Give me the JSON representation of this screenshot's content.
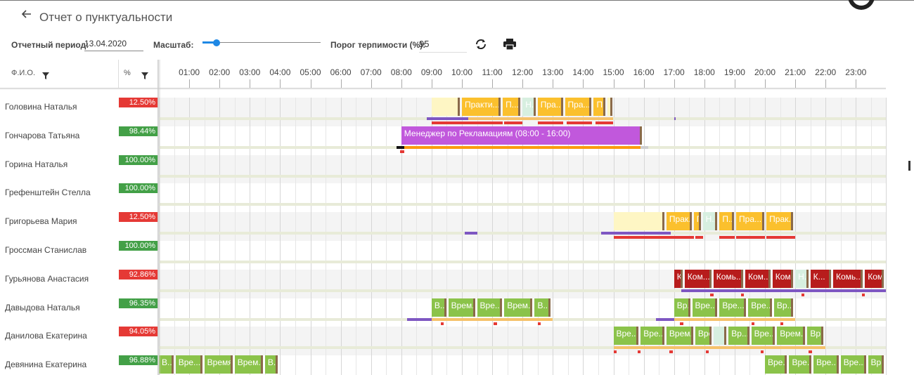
{
  "header": {
    "title": "Отчет о пунктуальности",
    "period_label": "Отчетный период:",
    "period_value": "13.04.2020",
    "scale_label": "Масштаб:",
    "scale_value": 0.12,
    "tolerance_label": "Порог терпимости (%):",
    "tolerance_value": "95"
  },
  "columns": {
    "name": "Ф.И.О.",
    "percent": "%"
  },
  "timeline": {
    "hours": [
      "01:00",
      "02:00",
      "03:00",
      "04:00",
      "05:00",
      "06:00",
      "07:00",
      "08:00",
      "09:00",
      "10:00",
      "11:00",
      "12:00",
      "13:00",
      "14:00",
      "15:00",
      "16:00",
      "17:00",
      "18:00",
      "19:00",
      "20:00",
      "21:00",
      "22:00",
      "23:00"
    ]
  },
  "colors": {
    "bad": "#e53935",
    "good": "#43a047"
  },
  "rows": [
    {
      "name": "Головина Наталья",
      "percent": "12.50%",
      "status": "bad",
      "segments": [
        {
          "start": 9.0,
          "end": 10.0,
          "label": "",
          "color": "#fef6c4"
        },
        {
          "start": 10.0,
          "end": 11.35,
          "label": "Практи...",
          "color": "#fbc02d"
        },
        {
          "start": 11.35,
          "end": 12.0,
          "label": "П...",
          "color": "#fbc02d"
        },
        {
          "start": 12.0,
          "end": 12.5,
          "label": "Н...",
          "color": "#d7efe0"
        },
        {
          "start": 12.5,
          "end": 13.4,
          "label": "Пра...",
          "color": "#fbc02d"
        },
        {
          "start": 13.4,
          "end": 14.35,
          "label": "Пра...",
          "color": "#fbc02d"
        },
        {
          "start": 14.35,
          "end": 14.8,
          "label": "П...",
          "color": "#fbc02d"
        },
        {
          "start": 14.8,
          "end": 15.0,
          "label": "",
          "color": "#fef6c4"
        }
      ],
      "marks": [
        {
          "start": 8.85,
          "end": 10.2,
          "color": "#7e57c2"
        },
        {
          "start": 10.2,
          "end": 15.0,
          "color": "#f5c26b"
        },
        {
          "start": 17.0,
          "end": 17.05,
          "color": "#7e57c2"
        }
      ],
      "marks2": [
        {
          "start": 9.0,
          "end": 11.35,
          "color": "#e53935"
        },
        {
          "start": 11.4,
          "end": 12.0,
          "color": "#e53935"
        },
        {
          "start": 12.5,
          "end": 13.35,
          "color": "#e53935"
        },
        {
          "start": 13.45,
          "end": 14.3,
          "color": "#e53935"
        },
        {
          "start": 14.4,
          "end": 15.0,
          "color": "#e53935"
        }
      ]
    },
    {
      "name": "Гончарова Татьяна",
      "percent": "98.44%",
      "status": "good",
      "segments": [
        {
          "start": 8.0,
          "end": 16.0,
          "label": "Менеджер по Рекламациям (08:00 - 16:00)",
          "color": "#c158dc"
        }
      ],
      "marks": [
        {
          "start": 7.85,
          "end": 8.1,
          "color": "#111111"
        },
        {
          "start": 8.1,
          "end": 15.9,
          "color": "#fb9a0f"
        },
        {
          "start": 15.9,
          "end": 16.15,
          "color": "#cfcfcf"
        }
      ],
      "marks2": [
        {
          "start": 7.95,
          "end": 8.1,
          "color": "#e53935"
        }
      ]
    },
    {
      "name": "Горина Наталья",
      "percent": "100.00%",
      "status": "good",
      "segments": [],
      "marks": [],
      "marks2": []
    },
    {
      "name": "Грефенштейн Стелла",
      "percent": "100.00%",
      "status": "good",
      "segments": [],
      "marks": [],
      "marks2": []
    },
    {
      "name": "Григорьева Мария",
      "percent": "12.50%",
      "status": "bad",
      "segments": [
        {
          "start": 15.0,
          "end": 16.75,
          "label": "",
          "color": "#fef6c4"
        },
        {
          "start": 16.75,
          "end": 17.65,
          "label": "Прак...",
          "color": "#fbc02d"
        },
        {
          "start": 17.65,
          "end": 17.95,
          "label": "Г...",
          "color": "#fbc02d"
        },
        {
          "start": 17.95,
          "end": 18.5,
          "label": "Н...",
          "color": "#d7efe0"
        },
        {
          "start": 18.5,
          "end": 19.05,
          "label": "П...",
          "color": "#fbc02d"
        },
        {
          "start": 19.05,
          "end": 20.05,
          "label": "Пра...",
          "color": "#fbc02d"
        },
        {
          "start": 20.05,
          "end": 21.0,
          "label": "Прак...",
          "color": "#fbc02d"
        }
      ],
      "marks": [
        {
          "start": 10.1,
          "end": 10.5,
          "color": "#7e57c2"
        },
        {
          "start": 14.6,
          "end": 16.9,
          "color": "#7e57c2"
        }
      ],
      "marks2": [
        {
          "start": 15.0,
          "end": 17.65,
          "color": "#e53935"
        },
        {
          "start": 17.7,
          "end": 17.95,
          "color": "#e53935"
        },
        {
          "start": 18.5,
          "end": 19.0,
          "color": "#e53935"
        },
        {
          "start": 19.05,
          "end": 20.0,
          "color": "#e53935"
        },
        {
          "start": 20.05,
          "end": 21.0,
          "color": "#e53935"
        }
      ]
    },
    {
      "name": "Гроссман Станислав",
      "percent": "100.00%",
      "status": "good",
      "segments": [],
      "marks": [],
      "marks2": []
    },
    {
      "name": "Гурьянова Анастасия",
      "percent": "92.86%",
      "status": "bad",
      "segments": [
        {
          "start": 17.0,
          "end": 17.35,
          "label": "К...",
          "color": "#b71c1c"
        },
        {
          "start": 17.35,
          "end": 18.3,
          "label": "Ком...",
          "color": "#b71c1c"
        },
        {
          "start": 18.3,
          "end": 19.35,
          "label": "Комь...",
          "color": "#b71c1c"
        },
        {
          "start": 19.35,
          "end": 20.25,
          "label": "Ком...",
          "color": "#b71c1c"
        },
        {
          "start": 20.25,
          "end": 21.0,
          "label": "Ком...",
          "color": "#b71c1c"
        },
        {
          "start": 21.0,
          "end": 21.5,
          "label": "Н...",
          "color": "#d7efe0"
        },
        {
          "start": 21.5,
          "end": 22.25,
          "label": "К...",
          "color": "#b71c1c"
        },
        {
          "start": 22.25,
          "end": 23.3,
          "label": "Комь...",
          "color": "#b71c1c"
        },
        {
          "start": 23.3,
          "end": 24.0,
          "label": "Ком...",
          "color": "#b71c1c"
        }
      ],
      "marks": [
        {
          "start": 17.25,
          "end": 24.0,
          "color": "#7e57c2"
        }
      ],
      "marks2": [
        {
          "start": 18.2,
          "end": 18.3,
          "color": "#e53935"
        },
        {
          "start": 19.2,
          "end": 19.3,
          "color": "#e53935"
        },
        {
          "start": 21.2,
          "end": 21.3,
          "color": "#e53935"
        },
        {
          "start": 23.2,
          "end": 23.3,
          "color": "#e53935"
        }
      ]
    },
    {
      "name": "Давыдова Наталья",
      "percent": "96.35%",
      "status": "good",
      "segments": [
        {
          "start": 9.0,
          "end": 9.55,
          "label": "В...",
          "color": "#8bc34a"
        },
        {
          "start": 9.55,
          "end": 10.5,
          "label": "Врем...",
          "color": "#8bc34a"
        },
        {
          "start": 10.5,
          "end": 11.4,
          "label": "Вре...",
          "color": "#8bc34a"
        },
        {
          "start": 11.4,
          "end": 12.4,
          "label": "Врем...",
          "color": "#8bc34a"
        },
        {
          "start": 12.4,
          "end": 13.0,
          "label": "В...",
          "color": "#8bc34a"
        },
        {
          "start": 17.0,
          "end": 17.6,
          "label": "Вр...",
          "color": "#8bc34a"
        },
        {
          "start": 17.6,
          "end": 18.5,
          "label": "Вре...",
          "color": "#8bc34a"
        },
        {
          "start": 18.5,
          "end": 19.45,
          "label": "Вре...",
          "color": "#8bc34a"
        },
        {
          "start": 19.45,
          "end": 20.3,
          "label": "Вре...",
          "color": "#8bc34a"
        },
        {
          "start": 20.3,
          "end": 21.0,
          "label": "Вр...",
          "color": "#8bc34a"
        }
      ],
      "marks": [
        {
          "start": 8.2,
          "end": 9.0,
          "color": "#7e57c2"
        },
        {
          "start": 9.0,
          "end": 13.0,
          "color": "#f5c26b"
        },
        {
          "start": 16.4,
          "end": 17.0,
          "color": "#7e57c2"
        },
        {
          "start": 17.0,
          "end": 21.0,
          "color": "#f5c26b"
        }
      ],
      "marks2": [
        {
          "start": 9.3,
          "end": 9.4,
          "color": "#e53935"
        },
        {
          "start": 11.05,
          "end": 11.15,
          "color": "#e53935"
        },
        {
          "start": 12.5,
          "end": 12.6,
          "color": "#e53935"
        },
        {
          "start": 17.2,
          "end": 17.3,
          "color": "#e53935"
        },
        {
          "start": 19.55,
          "end": 19.65,
          "color": "#e53935"
        },
        {
          "start": 20.5,
          "end": 20.6,
          "color": "#e53935"
        }
      ]
    },
    {
      "name": "Данилова Екатерина",
      "percent": "94.05%",
      "status": "bad",
      "segments": [
        {
          "start": 15.0,
          "end": 15.9,
          "label": "Вре...",
          "color": "#8bc34a"
        },
        {
          "start": 15.9,
          "end": 16.75,
          "label": "Вре...",
          "color": "#8bc34a"
        },
        {
          "start": 16.75,
          "end": 17.7,
          "label": "Врем...",
          "color": "#8bc34a"
        },
        {
          "start": 17.7,
          "end": 18.3,
          "label": "Вре...",
          "color": "#8bc34a"
        },
        {
          "start": 18.3,
          "end": 18.8,
          "label": "",
          "color": "#d7efe0"
        },
        {
          "start": 18.8,
          "end": 19.55,
          "label": "Вр...",
          "color": "#8bc34a"
        },
        {
          "start": 19.55,
          "end": 20.4,
          "label": "Вре...",
          "color": "#8bc34a"
        },
        {
          "start": 20.4,
          "end": 21.4,
          "label": "Врем...",
          "color": "#8bc34a"
        },
        {
          "start": 21.4,
          "end": 22.0,
          "label": "Вр...",
          "color": "#8bc34a"
        }
      ],
      "marks": [
        {
          "start": 15.0,
          "end": 22.0,
          "color": "#f5c26b"
        }
      ],
      "marks2": [
        {
          "start": 15.0,
          "end": 15.1,
          "color": "#e53935"
        },
        {
          "start": 15.8,
          "end": 15.9,
          "color": "#e53935"
        },
        {
          "start": 16.85,
          "end": 16.95,
          "color": "#e53935"
        },
        {
          "start": 18.05,
          "end": 18.15,
          "color": "#e53935"
        },
        {
          "start": 19.85,
          "end": 19.95,
          "color": "#e53935"
        },
        {
          "start": 21.45,
          "end": 21.55,
          "color": "#e53935"
        }
      ]
    },
    {
      "name": "Девянина Екатерина",
      "percent": "96.88%",
      "status": "good",
      "segments": [
        {
          "start": 0.0,
          "end": 0.55,
          "label": "В...",
          "color": "#8bc34a"
        },
        {
          "start": 0.55,
          "end": 1.5,
          "label": "Вре...",
          "color": "#8bc34a"
        },
        {
          "start": 1.5,
          "end": 2.5,
          "label": "Время...",
          "color": "#8bc34a"
        },
        {
          "start": 2.5,
          "end": 3.5,
          "label": "Врем...",
          "color": "#8bc34a"
        },
        {
          "start": 3.5,
          "end": 4.0,
          "label": "В...",
          "color": "#8bc34a"
        },
        {
          "start": 20.0,
          "end": 20.8,
          "label": "Вре...",
          "color": "#8bc34a"
        },
        {
          "start": 20.8,
          "end": 21.6,
          "label": "Вре...",
          "color": "#8bc34a"
        },
        {
          "start": 21.6,
          "end": 22.5,
          "label": "Вре...",
          "color": "#8bc34a"
        },
        {
          "start": 22.5,
          "end": 23.4,
          "label": "Вре...",
          "color": "#8bc34a"
        },
        {
          "start": 23.4,
          "end": 24.0,
          "label": "Вр...",
          "color": "#8bc34a"
        }
      ],
      "marks": [],
      "marks2": []
    }
  ]
}
